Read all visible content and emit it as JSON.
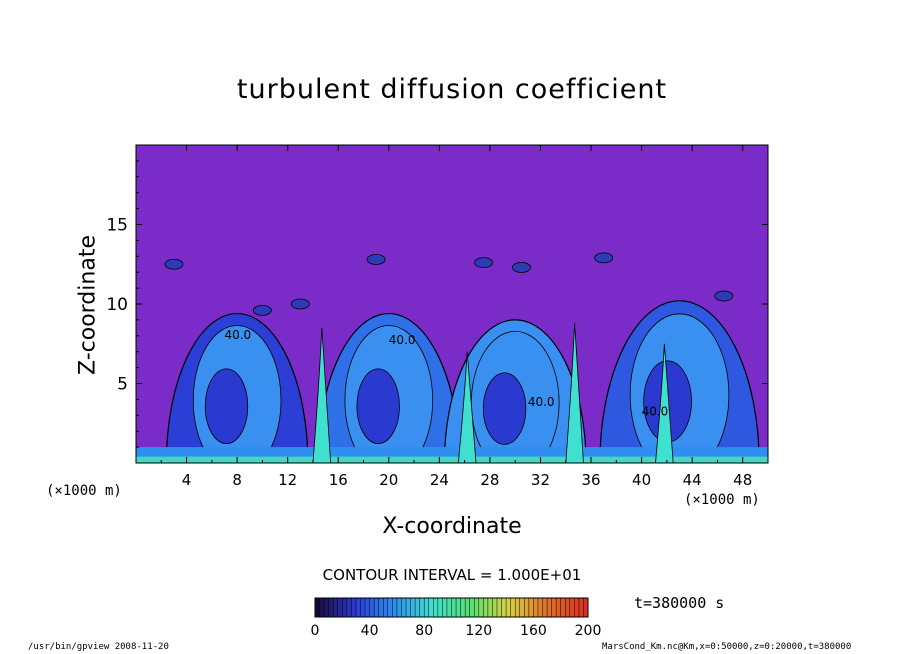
{
  "chart_data": {
    "type": "heatmap",
    "title": "turbulent diffusion coefficient",
    "xlabel": "X-coordinate",
    "ylabel": "Z-coordinate",
    "x_unit_label": "(×1000 m)",
    "y_unit_label": "(×1000 m)",
    "xlim": [
      0,
      50
    ],
    "ylim": [
      0,
      20
    ],
    "x_ticks": [
      4,
      8,
      12,
      16,
      20,
      24,
      28,
      32,
      36,
      40,
      44,
      48
    ],
    "y_ticks": [
      5,
      10,
      15
    ],
    "contour_interval_label": "CONTOUR INTERVAL = 1.000E+01",
    "colorbar": {
      "range": [
        0,
        200
      ],
      "ticks": [
        0,
        40,
        80,
        120,
        160,
        200
      ],
      "colors": [
        "#1a0a3c",
        "#2a3bd8",
        "#2f8ef0",
        "#3fe0d0",
        "#55e070",
        "#d8d040",
        "#e07028",
        "#d83020"
      ]
    },
    "background_color": "#7a2bc8",
    "contour_labels": [
      "40.0",
      "40.0",
      "40.0",
      "40.0"
    ],
    "cells": [
      {
        "x_center": 8,
        "z_top": 9.4,
        "peak_value": 40
      },
      {
        "x_center": 20,
        "z_top": 9.4,
        "peak_value": 40
      },
      {
        "x_center": 30,
        "z_top": 9.0,
        "peak_value": 40
      },
      {
        "x_center": 43,
        "z_top": 10.2,
        "peak_value": 40
      }
    ]
  },
  "time_label": "t=380000 s",
  "footer": {
    "left": "/usr/bin/gpview  2008-11-20",
    "right": "MarsCond_Km.nc@Km,x=0:50000,z=0:20000,t=380000"
  }
}
